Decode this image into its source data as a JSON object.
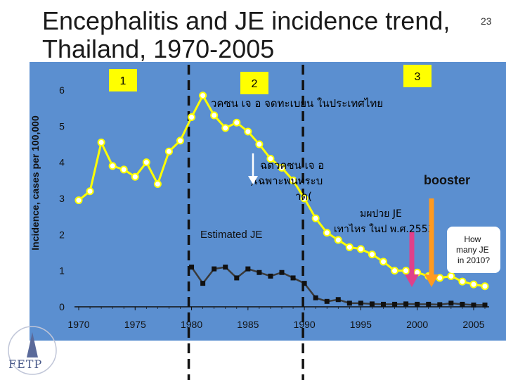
{
  "slide": {
    "title_line1": "Encephalitis and JE incidence trend,",
    "title_line2": "Thailand, 1970-2005",
    "page_number": "23",
    "logo_text": "FETP"
  },
  "colors": {
    "background": "#5b8fd0",
    "encephalitis_line": "#ffff00",
    "estimated_je_line": "#3a3a3a",
    "arrow_pink": "#e0408a",
    "arrow_orange": "#ff9a20",
    "label_box_fill": "#ffff00"
  },
  "annotations": {
    "box1": "1",
    "box2": "2",
    "box3": "3",
    "text_vaccine_registered": "วคซน เจ อ จดทะเบยน ในประเทศไทย",
    "text_vaccine_line1": "ฉดวคซน เจ อ",
    "text_vaccine_line2": ")เฉพาะพนทระบ",
    "text_vaccine_line3": "าด(",
    "booster": "booster",
    "thai_je_line1": "มผปวย JE",
    "thai_je_line2": "เทาไหร ในป พ.ศ.2553",
    "estimated_je": "Estimated JE",
    "how_many": "How many JE in 2010?"
  },
  "chart_data": {
    "type": "line",
    "title": "Encephalitis and JE incidence trend, Thailand, 1970-2005",
    "ylabel": "Incidence, cases per 100,000",
    "xlabel": "",
    "xlim": [
      1970,
      2007
    ],
    "ylim": [
      0,
      6
    ],
    "x_ticks": [
      "1970",
      "1975",
      "1980",
      "1985",
      "1990",
      "1995",
      "2000",
      "2005"
    ],
    "y_ticks": [
      "0",
      "1",
      "2",
      "3",
      "4",
      "5",
      "6"
    ],
    "grid": false,
    "series": [
      {
        "name": "",
        "x": [
          1970,
          1971,
          1972,
          1973,
          1974,
          1975,
          1976,
          1977,
          1978,
          1979,
          1980,
          1981,
          1982,
          1983,
          1984,
          1985,
          1986,
          1987,
          1988,
          1989,
          1990,
          1991,
          1992,
          1993,
          1994,
          1995,
          1996,
          1997,
          1998,
          1999,
          2000,
          2001,
          2002,
          2003,
          2004,
          2005,
          2006
        ],
        "values": [
          2.95,
          3.2,
          4.55,
          3.9,
          3.8,
          3.6,
          4.0,
          3.4,
          4.3,
          4.6,
          5.25,
          5.85,
          5.3,
          4.95,
          5.1,
          4.85,
          4.5,
          4.1,
          3.85,
          3.5,
          3.0,
          2.45,
          2.05,
          1.85,
          1.65,
          1.6,
          1.45,
          1.25,
          1.0,
          1.0,
          0.95,
          0.85,
          0.8,
          0.85,
          0.7,
          0.62,
          0.57
        ]
      },
      {
        "name": "Estimated JE",
        "x": [
          1980,
          1981,
          1982,
          1983,
          1984,
          1985,
          1986,
          1987,
          1988,
          1989,
          1990,
          1991,
          1992,
          1993,
          1994,
          1995,
          1996,
          1997,
          1998,
          1999,
          2000,
          2001,
          2002,
          2003,
          2004,
          2005,
          2006
        ],
        "values": [
          1.1,
          0.65,
          1.05,
          1.1,
          0.8,
          1.05,
          0.95,
          0.85,
          0.95,
          0.8,
          0.65,
          0.25,
          0.15,
          0.2,
          0.1,
          0.1,
          0.08,
          0.07,
          0.07,
          0.08,
          0.07,
          0.07,
          0.06,
          0.1,
          0.07,
          0.05,
          0.05
        ]
      }
    ],
    "vertical_markers_x": [
      1980,
      1990
    ]
  }
}
